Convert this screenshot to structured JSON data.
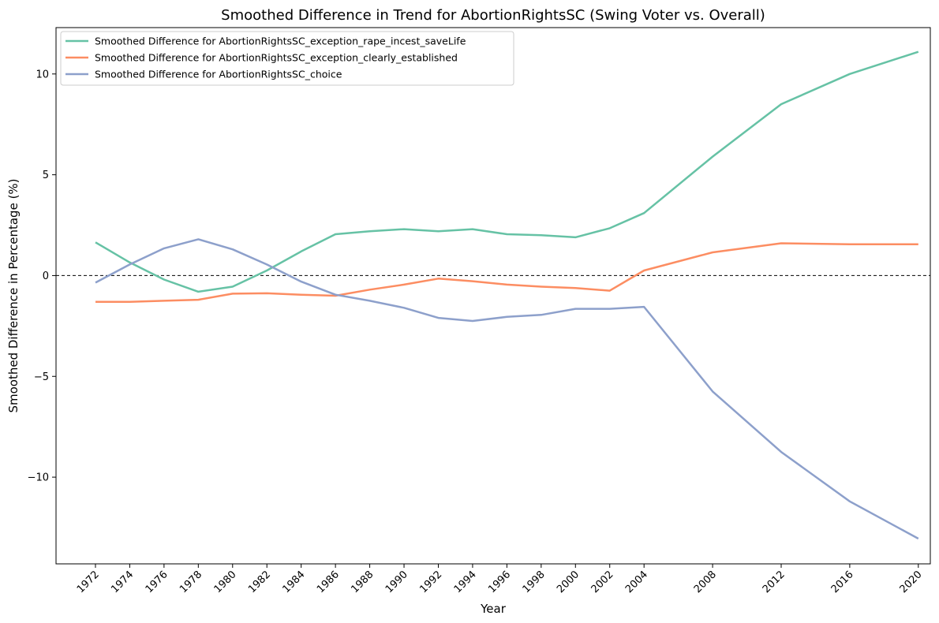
{
  "chart_data": {
    "type": "line",
    "title": "Smoothed Difference in Trend for AbortionRightsSC (Swing Voter vs. Overall)",
    "xlabel": "Year",
    "ylabel": "Smoothed Difference in Percentage (%)",
    "x": [
      1972,
      1974,
      1976,
      1978,
      1980,
      1982,
      1984,
      1986,
      1988,
      1990,
      1992,
      1994,
      1996,
      1998,
      2000,
      2002,
      2004,
      2008,
      2012,
      2016,
      2020
    ],
    "x_ticks": [
      "1972",
      "1974",
      "1976",
      "1978",
      "1980",
      "1982",
      "1984",
      "1986",
      "1988",
      "1990",
      "1992",
      "1994",
      "1996",
      "1998",
      "2000",
      "2002",
      "2004",
      "2008",
      "2012",
      "2016",
      "2020"
    ],
    "xlim": [
      1969.7,
      2020.7
    ],
    "ylim": [
      -14.3,
      12.3
    ],
    "y_ticks": [
      10,
      5,
      0,
      -5,
      -10
    ],
    "y_tick_labels": [
      "10",
      "5",
      "0",
      "−5",
      "−10"
    ],
    "reference_line": {
      "y": 0,
      "style": "dashed",
      "color": "#000000"
    },
    "grid": false,
    "legend_position": "top-left",
    "series": [
      {
        "name": "Smoothed Difference for AbortionRightsSC_exception_rape_incest_saveLife",
        "color": "#66c2a5",
        "values": [
          1.65,
          0.65,
          -0.2,
          -0.8,
          -0.55,
          0.25,
          1.2,
          2.05,
          2.2,
          2.3,
          2.2,
          2.3,
          2.05,
          2.0,
          1.9,
          2.35,
          3.1,
          5.9,
          8.5,
          10.0,
          11.1
        ]
      },
      {
        "name": "Smoothed Difference for AbortionRightsSC_exception_clearly_established",
        "color": "#fc8d62",
        "values": [
          -1.3,
          -1.3,
          -1.25,
          -1.2,
          -0.9,
          -0.88,
          -0.95,
          -1.0,
          -0.7,
          -0.45,
          -0.15,
          -0.28,
          -0.45,
          -0.55,
          -0.62,
          -0.75,
          0.25,
          1.15,
          1.6,
          1.55,
          1.55
        ]
      },
      {
        "name": "Smoothed Difference for AbortionRightsSC_choice",
        "color": "#8da0cb",
        "values": [
          -0.35,
          0.55,
          1.35,
          1.8,
          1.3,
          0.55,
          -0.3,
          -0.95,
          -1.25,
          -1.6,
          -2.1,
          -2.25,
          -2.05,
          -1.95,
          -1.65,
          -1.65,
          -1.55,
          -5.75,
          -8.75,
          -11.2,
          -13.05
        ]
      }
    ]
  }
}
